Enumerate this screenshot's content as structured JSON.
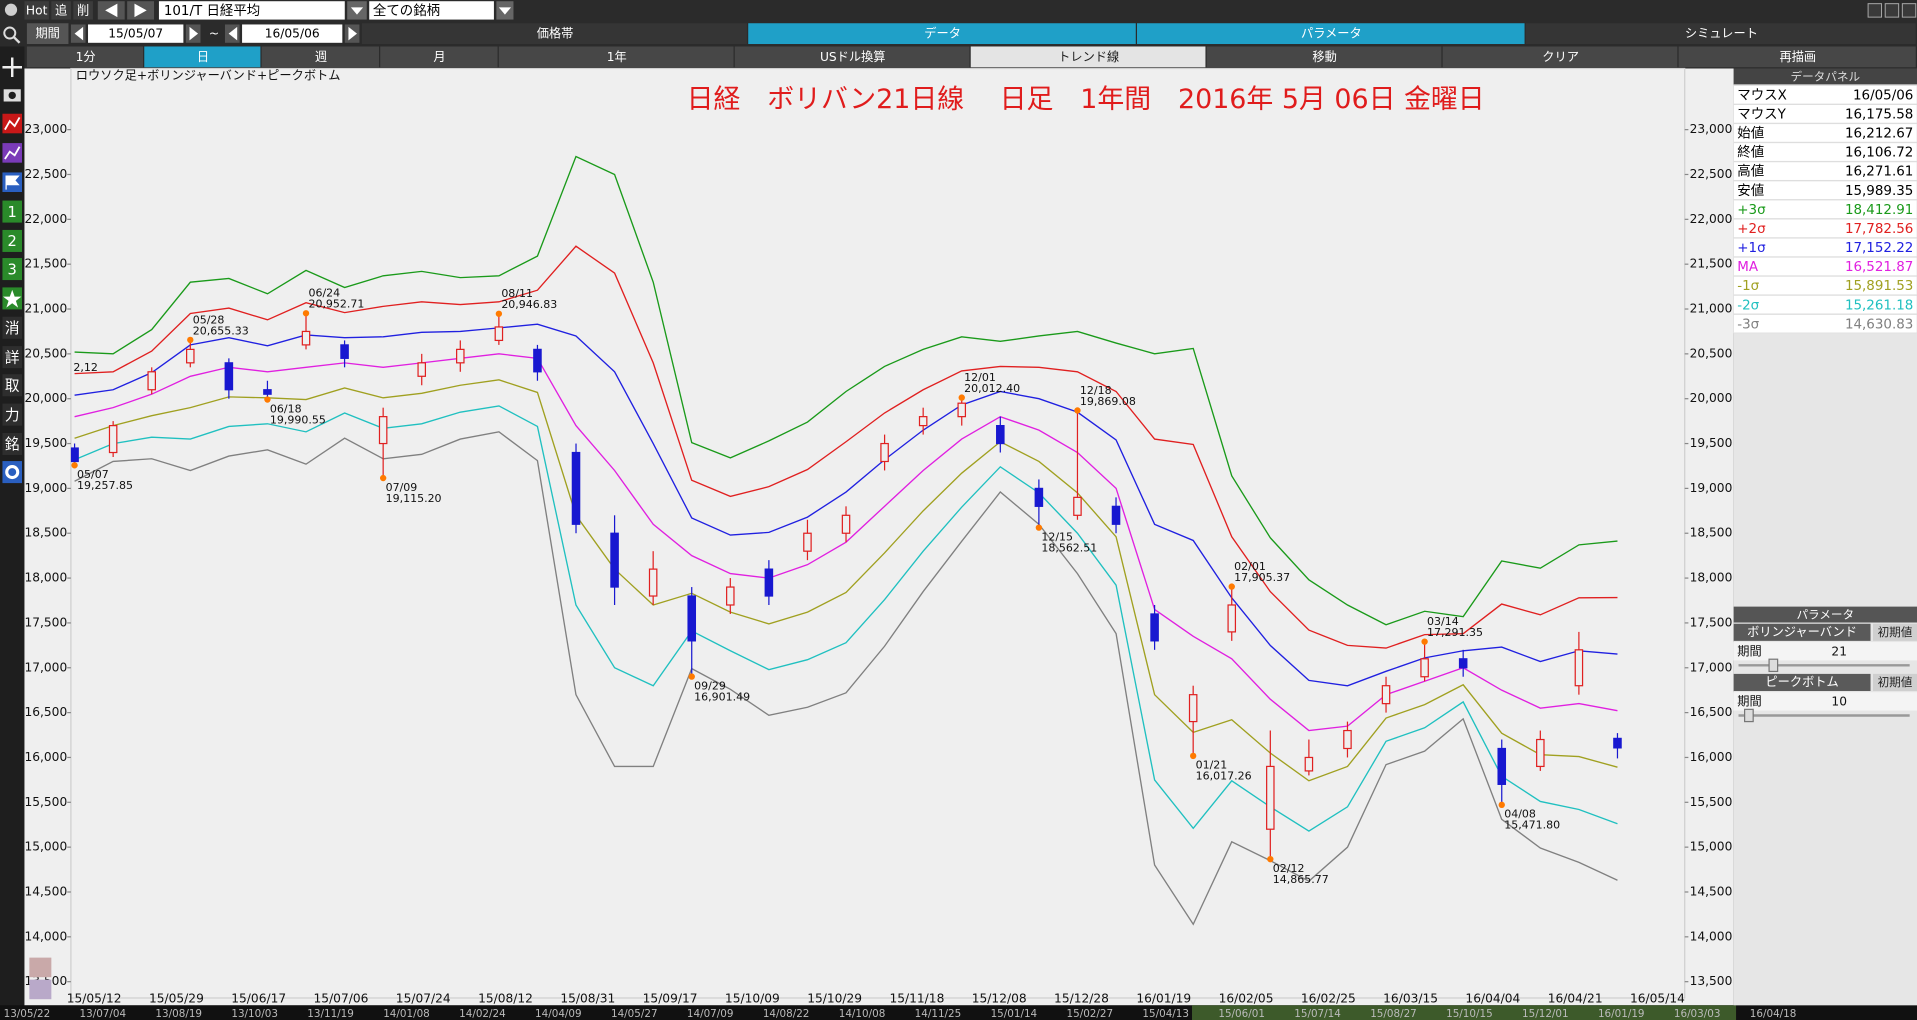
{
  "toolbar": {
    "hot": "Hot",
    "add": "追",
    "del": "削",
    "symbol": "101/T 日経平均",
    "universe": "全ての銘柄",
    "period_label": "期間",
    "start": "15/05/07",
    "tilde": "~",
    "end": "16/05/06",
    "tabs": [
      "価格帯",
      "データ",
      "パラメータ",
      "シミュレート"
    ],
    "buttons": [
      "1分",
      "日",
      "週",
      "月",
      "1年",
      "USドル換算",
      "トレンド線",
      "移動",
      "クリア",
      "再描画"
    ]
  },
  "sidebar": [
    "1",
    "2",
    "3",
    "消",
    "詳",
    "取",
    "力",
    "銘"
  ],
  "chart_data": {
    "type": "candlestick",
    "subtitle": "ロウソク足+ボリンジャーバンド+ピークボトム",
    "title": "日経　ボリバン21日線　 日足　1年間　2016年 5月 06日 金曜日",
    "edge_label": "2,12",
    "x_labels": [
      "15/05/12",
      "15/05/29",
      "15/06/17",
      "15/07/06",
      "15/07/24",
      "15/08/12",
      "15/08/31",
      "15/09/17",
      "15/10/09",
      "15/10/29",
      "15/11/18",
      "15/12/08",
      "15/12/28",
      "16/01/19",
      "16/02/05",
      "16/02/25",
      "16/03/15",
      "16/04/04",
      "16/04/21",
      "16/05/14"
    ],
    "open": [
      19450,
      19400,
      20100,
      20400,
      20400,
      20100,
      20600,
      20600,
      19500,
      20250,
      20400,
      20650,
      20550,
      19400,
      18500,
      17800,
      17800,
      17700,
      18100,
      18300,
      18500,
      19300,
      19700,
      19800,
      19700,
      19000,
      18700,
      18800,
      17600,
      16400,
      17400,
      15200,
      15850,
      16100,
      16600,
      16900,
      17100,
      16100,
      15900,
      16800,
      16212.67
    ],
    "high": [
      19500,
      19750,
      20350,
      20655.33,
      20450,
      20200,
      20952.71,
      20650,
      19900,
      20500,
      20650,
      20946.83,
      20600,
      19500,
      18700,
      18300,
      17900,
      18000,
      18200,
      18650,
      18800,
      19600,
      19900,
      20012.4,
      19800,
      19100,
      19869.08,
      18900,
      17700,
      16800,
      17905.37,
      16300,
      16200,
      16400,
      16900,
      17291.35,
      17200,
      16200,
      16300,
      17400,
      16271.61
    ],
    "low": [
      19257.85,
      19350,
      20050,
      20350,
      20000,
      19990.55,
      20550,
      20350,
      19115.2,
      20150,
      20300,
      20600,
      20200,
      18500,
      17700,
      17700,
      16901.49,
      17600,
      17700,
      18200,
      18400,
      19200,
      19600,
      19700,
      19400,
      18562.51,
      18650,
      18500,
      17200,
      16017.26,
      17300,
      14865.77,
      15800,
      16000,
      16500,
      16850,
      16900,
      15471.8,
      15850,
      16700,
      15989.35
    ],
    "close": [
      19300,
      19700,
      20300,
      20550,
      20100,
      20050,
      20750,
      20450,
      19800,
      20400,
      20550,
      20800,
      20300,
      18600,
      17900,
      18100,
      17300,
      17900,
      17800,
      18500,
      18700,
      19500,
      19800,
      19950,
      19500,
      18800,
      18900,
      18600,
      17300,
      16700,
      17700,
      15900,
      16000,
      16300,
      16800,
      17100,
      17000,
      15700,
      16200,
      17200,
      16106.72
    ],
    "up_color": "#e02020",
    "down_color": "#1818d0",
    "series": [
      {
        "color": "#1a9a1a",
        "values": [
          20520,
          20500,
          20770,
          21300,
          21340,
          21170,
          21430,
          21240,
          21370,
          21420,
          21350,
          21370,
          21590,
          22700,
          22500,
          21300,
          19510,
          19340,
          19530,
          19740,
          20080,
          20360,
          20550,
          20690,
          20640,
          20700,
          20750,
          20620,
          20500,
          20560,
          19140,
          18450,
          17980,
          17700,
          17480,
          17630,
          17570,
          18190,
          18110,
          18370,
          18412.91
        ]
      },
      {
        "color": "#e02020",
        "values": [
          20280,
          20300,
          20530,
          20950,
          21010,
          20880,
          21070,
          20960,
          21030,
          21080,
          21050,
          21080,
          21210,
          21700,
          21400,
          20400,
          19090,
          18910,
          19020,
          19210,
          19520,
          19840,
          20100,
          20310,
          20360,
          20350,
          20300,
          20080,
          19550,
          19490,
          18460,
          17850,
          17420,
          17250,
          17220,
          17370,
          17380,
          17710,
          17590,
          17780,
          17782.56
        ]
      },
      {
        "color": "#2020e0",
        "values": [
          20040,
          20100,
          20290,
          20600,
          20680,
          20590,
          20710,
          20680,
          20690,
          20740,
          20750,
          20790,
          20830,
          20700,
          20300,
          19500,
          18670,
          18480,
          18510,
          18680,
          18960,
          19320,
          19650,
          19930,
          20080,
          20000,
          19850,
          19540,
          18600,
          18420,
          17780,
          17250,
          16860,
          16800,
          16960,
          17110,
          17190,
          17230,
          17070,
          17190,
          17152.22
        ]
      },
      {
        "color": "#e020e0",
        "values": [
          19800,
          19900,
          20050,
          20250,
          20350,
          20300,
          20350,
          20400,
          20350,
          20400,
          20450,
          20500,
          20450,
          19700,
          19200,
          18600,
          18250,
          18050,
          18000,
          18150,
          18400,
          18800,
          19200,
          19550,
          19800,
          19650,
          19400,
          19000,
          17650,
          17350,
          17100,
          16650,
          16300,
          16350,
          16700,
          16850,
          17000,
          16750,
          16550,
          16600,
          16521.87
        ]
      },
      {
        "color": "#a0a020",
        "values": [
          19560,
          19700,
          19810,
          19900,
          20020,
          20010,
          19990,
          20120,
          20010,
          20060,
          20150,
          20210,
          20070,
          18700,
          18100,
          17700,
          17830,
          17620,
          17490,
          17620,
          17840,
          18280,
          18750,
          19170,
          19520,
          19300,
          18950,
          18460,
          16700,
          16280,
          16420,
          16050,
          15740,
          15900,
          16440,
          16590,
          16810,
          16270,
          16030,
          16010,
          15891.53
        ]
      },
      {
        "color": "#20c0c0",
        "values": [
          19320,
          19500,
          19570,
          19550,
          19690,
          19720,
          19630,
          19840,
          19670,
          19720,
          19850,
          19920,
          19690,
          17700,
          17000,
          16800,
          17410,
          17190,
          16980,
          17090,
          17280,
          17760,
          18300,
          18790,
          19240,
          18950,
          18500,
          17920,
          15750,
          15210,
          15740,
          15450,
          15180,
          15450,
          16180,
          16330,
          16620,
          15790,
          15510,
          15420,
          15261.18
        ]
      },
      {
        "color": "#808080",
        "values": [
          19080,
          19300,
          19330,
          19200,
          19360,
          19430,
          19270,
          19560,
          19330,
          19380,
          19550,
          19630,
          19310,
          16700,
          15900,
          15900,
          16990,
          16760,
          16470,
          16560,
          16720,
          17240,
          17850,
          18410,
          18960,
          18600,
          18050,
          17380,
          14800,
          14140,
          15060,
          14850,
          14620,
          15000,
          15920,
          16070,
          16430,
          15310,
          14990,
          14830,
          14630.83
        ]
      }
    ],
    "ylim": [
      13400,
      23300
    ],
    "yticks": [
      {
        "value": 13500,
        "label": "13,500"
      },
      {
        "value": 14000,
        "label": "14,000"
      },
      {
        "value": 14500,
        "label": "14,500"
      },
      {
        "value": 15000,
        "label": "15,000"
      },
      {
        "value": 15500,
        "label": "15,500"
      },
      {
        "value": 16000,
        "label": "16,000"
      },
      {
        "value": 16500,
        "label": "16,500"
      },
      {
        "value": 17000,
        "label": "17,000"
      },
      {
        "value": 17500,
        "label": "17,500"
      },
      {
        "value": 18000,
        "label": "18,000"
      },
      {
        "value": 18500,
        "label": "18,500"
      },
      {
        "value": 19000,
        "label": "19,000"
      },
      {
        "value": 19500,
        "label": "19,500"
      },
      {
        "value": 20000,
        "label": "20,000"
      },
      {
        "value": 20500,
        "label": "20,500"
      },
      {
        "value": 21000,
        "label": "21,000"
      },
      {
        "value": 21500,
        "label": "21,500"
      },
      {
        "value": 22000,
        "label": "22,000"
      },
      {
        "value": 22500,
        "label": "22,500"
      },
      {
        "value": 23000,
        "label": "23,000"
      }
    ],
    "annotations": [
      {
        "date": "05/07",
        "label": "19,257.85",
        "value": 19257.85
      },
      {
        "date": "05/28",
        "label": "20,655.33",
        "value": 20655.33
      },
      {
        "date": "06/18",
        "label": "19,990.55",
        "value": 19990.55
      },
      {
        "date": "06/24",
        "label": "20,952.71",
        "value": 20952.71
      },
      {
        "date": "07/09",
        "label": "19,115.20",
        "value": 19115.2
      },
      {
        "date": "08/11",
        "label": "20,946.83",
        "value": 20946.83
      },
      {
        "date": "09/29",
        "label": "16,901.49",
        "value": 16901.49
      },
      {
        "date": "12/01",
        "label": "20,012.40",
        "value": 20012.4
      },
      {
        "date": "12/15",
        "label": "18,562.51",
        "value": 18562.51
      },
      {
        "date": "12/18",
        "label": "19,869.08",
        "value": 19869.08
      },
      {
        "date": "01/21",
        "label": "16,017.26",
        "value": 16017.26
      },
      {
        "date": "02/01",
        "label": "17,905.37",
        "value": 17905.37
      },
      {
        "date": "02/12",
        "label": "14,865.77",
        "value": 14865.77
      },
      {
        "date": "03/14",
        "label": "17,291.35",
        "value": 17291.35
      },
      {
        "date": "04/08",
        "label": "15,471.80",
        "value": 15471.8
      }
    ],
    "marker_color": "#ff7a00"
  },
  "overview": {
    "x_labels": [
      "13/05/22",
      "13/07/04",
      "13/08/19",
      "13/10/03",
      "13/11/19",
      "14/01/08",
      "14/02/24",
      "14/04/09",
      "14/05/27",
      "14/07/09",
      "14/08/22",
      "14/10/08",
      "14/11/25",
      "15/01/14",
      "15/02/27",
      "15/04/13",
      "15/06/01",
      "15/07/14",
      "15/08/27",
      "15/10/15",
      "15/12/01",
      "16/01/19",
      "16/03/03",
      "16/04/18"
    ]
  },
  "data_panel": {
    "title": "データパネル",
    "rows": [
      {
        "label": "マウスX",
        "value": "16/05/06",
        "color": "#000000"
      },
      {
        "label": "マウスY",
        "value": "16,175.58",
        "color": "#000000"
      },
      {
        "label": "始値",
        "value": "16,212.67",
        "color": "#000000"
      },
      {
        "label": "終値",
        "value": "16,106.72",
        "color": "#000000"
      },
      {
        "label": "高値",
        "value": "16,271.61",
        "color": "#000000"
      },
      {
        "label": "安値",
        "value": "15,989.35",
        "color": "#000000"
      },
      {
        "label": "+3σ",
        "value": "18,412.91",
        "color": "#1a9a1a"
      },
      {
        "label": "+2σ",
        "value": "17,782.56",
        "color": "#e02020"
      },
      {
        "label": "+1σ",
        "value": "17,152.22",
        "color": "#2020e0"
      },
      {
        "label": "MA",
        "value": "16,521.87",
        "color": "#e020e0"
      },
      {
        "label": "-1σ",
        "value": "15,891.53",
        "color": "#a0a020"
      },
      {
        "label": "-2σ",
        "value": "15,261.18",
        "color": "#20c0c0"
      },
      {
        "label": "-3σ",
        "value": "14,630.83",
        "color": "#808080"
      }
    ]
  },
  "param_panel": {
    "title": "パラメータ",
    "sections": [
      {
        "name": "ボリンジャーバンド",
        "reset": "初期値",
        "field": "期間",
        "value": "21"
      },
      {
        "name": "ピークボトム",
        "reset": "初期値",
        "field": "期間",
        "value": "10"
      }
    ]
  }
}
